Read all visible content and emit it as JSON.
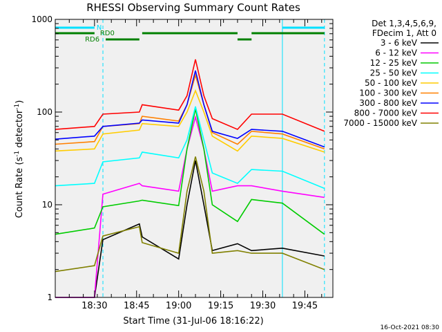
{
  "chart_data": {
    "type": "line",
    "title": "RHESSI Observing Summary Count Rates",
    "xlabel": "Start Time (31-Jul-06 18:16:22)",
    "ylabel_main": "Count Rate (s",
    "ylabel_sup": "-1",
    "ylabel_rest": " detector",
    "ylabel_end": ")",
    "yscale": "log",
    "ylim": [
      1,
      1000
    ],
    "xlim": [
      "18:16",
      "19:55"
    ],
    "x_ticks": [
      "18:30",
      "18:45",
      "19:00",
      "19:15",
      "19:30",
      "19:45"
    ],
    "y_ticks": [
      "1",
      "10",
      "100",
      "1000"
    ],
    "legend_header": [
      "Det 1,3,4,5,6,9,",
      "FDecim 1, Att 0"
    ],
    "footer_date": "16-Oct-2021 08:30",
    "flags": [
      {
        "label": "N",
        "color": "#00e0ff",
        "segments": [
          [
            "18:16",
            "18:30"
          ],
          [
            "19:37",
            "19:52"
          ]
        ]
      },
      {
        "label": "RD0",
        "color": "#008000",
        "segments": [
          [
            "18:16",
            "18:30"
          ],
          [
            "18:47",
            "19:21"
          ],
          [
            "19:26",
            "19:52"
          ]
        ]
      },
      {
        "label": "RD6",
        "color": "#008000",
        "segments": [
          [
            "18:34",
            "18:46"
          ],
          [
            "19:21",
            "19:26"
          ]
        ]
      }
    ],
    "markers": [
      {
        "x": "18:16",
        "color": "#00e0ff",
        "style": "solid"
      },
      {
        "x": "18:33",
        "color": "#00e0ff",
        "style": "dashed"
      },
      {
        "x": "19:37",
        "color": "#00e0ff",
        "style": "solid"
      },
      {
        "x": "19:52",
        "color": "#00e0ff",
        "style": "dashed"
      }
    ],
    "series": [
      {
        "name": "3 - 6 keV",
        "color": "#000000",
        "x": [
          "18:16",
          "18:30",
          "18:33",
          "18:46",
          "18:47",
          "19:00",
          "19:03",
          "19:06",
          "19:09",
          "19:12",
          "19:21",
          "19:26",
          "19:37",
          "19:52"
        ],
        "values": [
          1.0,
          1.0,
          4.2,
          6.2,
          4.5,
          2.6,
          10,
          30,
          10,
          3.2,
          3.8,
          3.2,
          3.4,
          2.8
        ]
      },
      {
        "name": "6 - 12 keV",
        "color": "#ff00ff",
        "x": [
          "18:16",
          "18:30",
          "18:33",
          "18:46",
          "18:47",
          "19:00",
          "19:03",
          "19:06",
          "19:09",
          "19:12",
          "19:21",
          "19:26",
          "19:37",
          "19:52"
        ],
        "values": [
          1.0,
          1.0,
          13,
          17,
          16,
          14,
          40,
          88,
          40,
          14,
          16,
          16,
          14,
          12
        ]
      },
      {
        "name": "12 - 25 keV",
        "color": "#00cc00",
        "x": [
          "18:16",
          "18:30",
          "18:33",
          "18:46",
          "18:47",
          "19:00",
          "19:03",
          "19:06",
          "19:09",
          "19:12",
          "19:21",
          "19:26",
          "19:37",
          "19:52"
        ],
        "values": [
          4.8,
          5.6,
          9.5,
          11,
          11.2,
          9.8,
          40,
          108,
          40,
          10,
          6.6,
          11.4,
          10.4,
          4.8
        ]
      },
      {
        "name": "25 - 50 keV",
        "color": "#00ffff",
        "x": [
          "18:16",
          "18:30",
          "18:33",
          "18:46",
          "18:47",
          "19:00",
          "19:03",
          "19:06",
          "19:09",
          "19:12",
          "19:21",
          "19:26",
          "19:37",
          "19:52"
        ],
        "values": [
          16,
          17,
          29,
          32,
          37,
          32,
          50,
          115,
          50,
          22,
          17,
          24,
          23,
          15
        ]
      },
      {
        "name": "50 - 100 keV",
        "color": "#ffcc00",
        "x": [
          "18:16",
          "18:30",
          "18:33",
          "18:46",
          "18:47",
          "19:00",
          "19:03",
          "19:06",
          "19:09",
          "19:12",
          "19:21",
          "19:26",
          "19:37",
          "19:52"
        ],
        "values": [
          38,
          40,
          58,
          64,
          75,
          70,
          100,
          170,
          100,
          55,
          38,
          55,
          52,
          37
        ]
      },
      {
        "name": "100 - 300 keV",
        "color": "#ff8000",
        "x": [
          "18:16",
          "18:30",
          "18:33",
          "18:46",
          "18:47",
          "19:00",
          "19:03",
          "19:06",
          "19:09",
          "19:12",
          "19:21",
          "19:26",
          "19:37",
          "19:52"
        ],
        "values": [
          45,
          48,
          70,
          75,
          90,
          80,
          120,
          250,
          120,
          60,
          45,
          62,
          58,
          40
        ]
      },
      {
        "name": "300 - 800 keV",
        "color": "#0000ff",
        "x": [
          "18:16",
          "18:30",
          "18:33",
          "18:46",
          "18:47",
          "19:00",
          "19:03",
          "19:06",
          "19:09",
          "19:12",
          "19:21",
          "19:26",
          "19:37",
          "19:52"
        ],
        "values": [
          51,
          55,
          70,
          76,
          82,
          76,
          120,
          280,
          120,
          62,
          52,
          65,
          62,
          42
        ]
      },
      {
        "name": "800 - 7000 keV",
        "color": "#ff0000",
        "x": [
          "18:16",
          "18:30",
          "18:33",
          "18:46",
          "18:47",
          "19:00",
          "19:03",
          "19:06",
          "19:09",
          "19:12",
          "19:21",
          "19:26",
          "19:37",
          "19:52"
        ],
        "values": [
          65,
          70,
          95,
          100,
          120,
          105,
          150,
          370,
          150,
          85,
          65,
          95,
          95,
          62
        ]
      },
      {
        "name": "7000 - 15000 keV",
        "color": "#808000",
        "x": [
          "18:16",
          "18:30",
          "18:33",
          "18:46",
          "18:47",
          "19:00",
          "19:03",
          "19:06",
          "19:09",
          "19:12",
          "19:21",
          "19:26",
          "19:37",
          "19:52"
        ],
        "values": [
          1.9,
          2.2,
          4.6,
          5.8,
          3.9,
          3.0,
          14,
          33,
          14,
          3.0,
          3.2,
          3.0,
          3.0,
          2.0
        ]
      }
    ]
  }
}
